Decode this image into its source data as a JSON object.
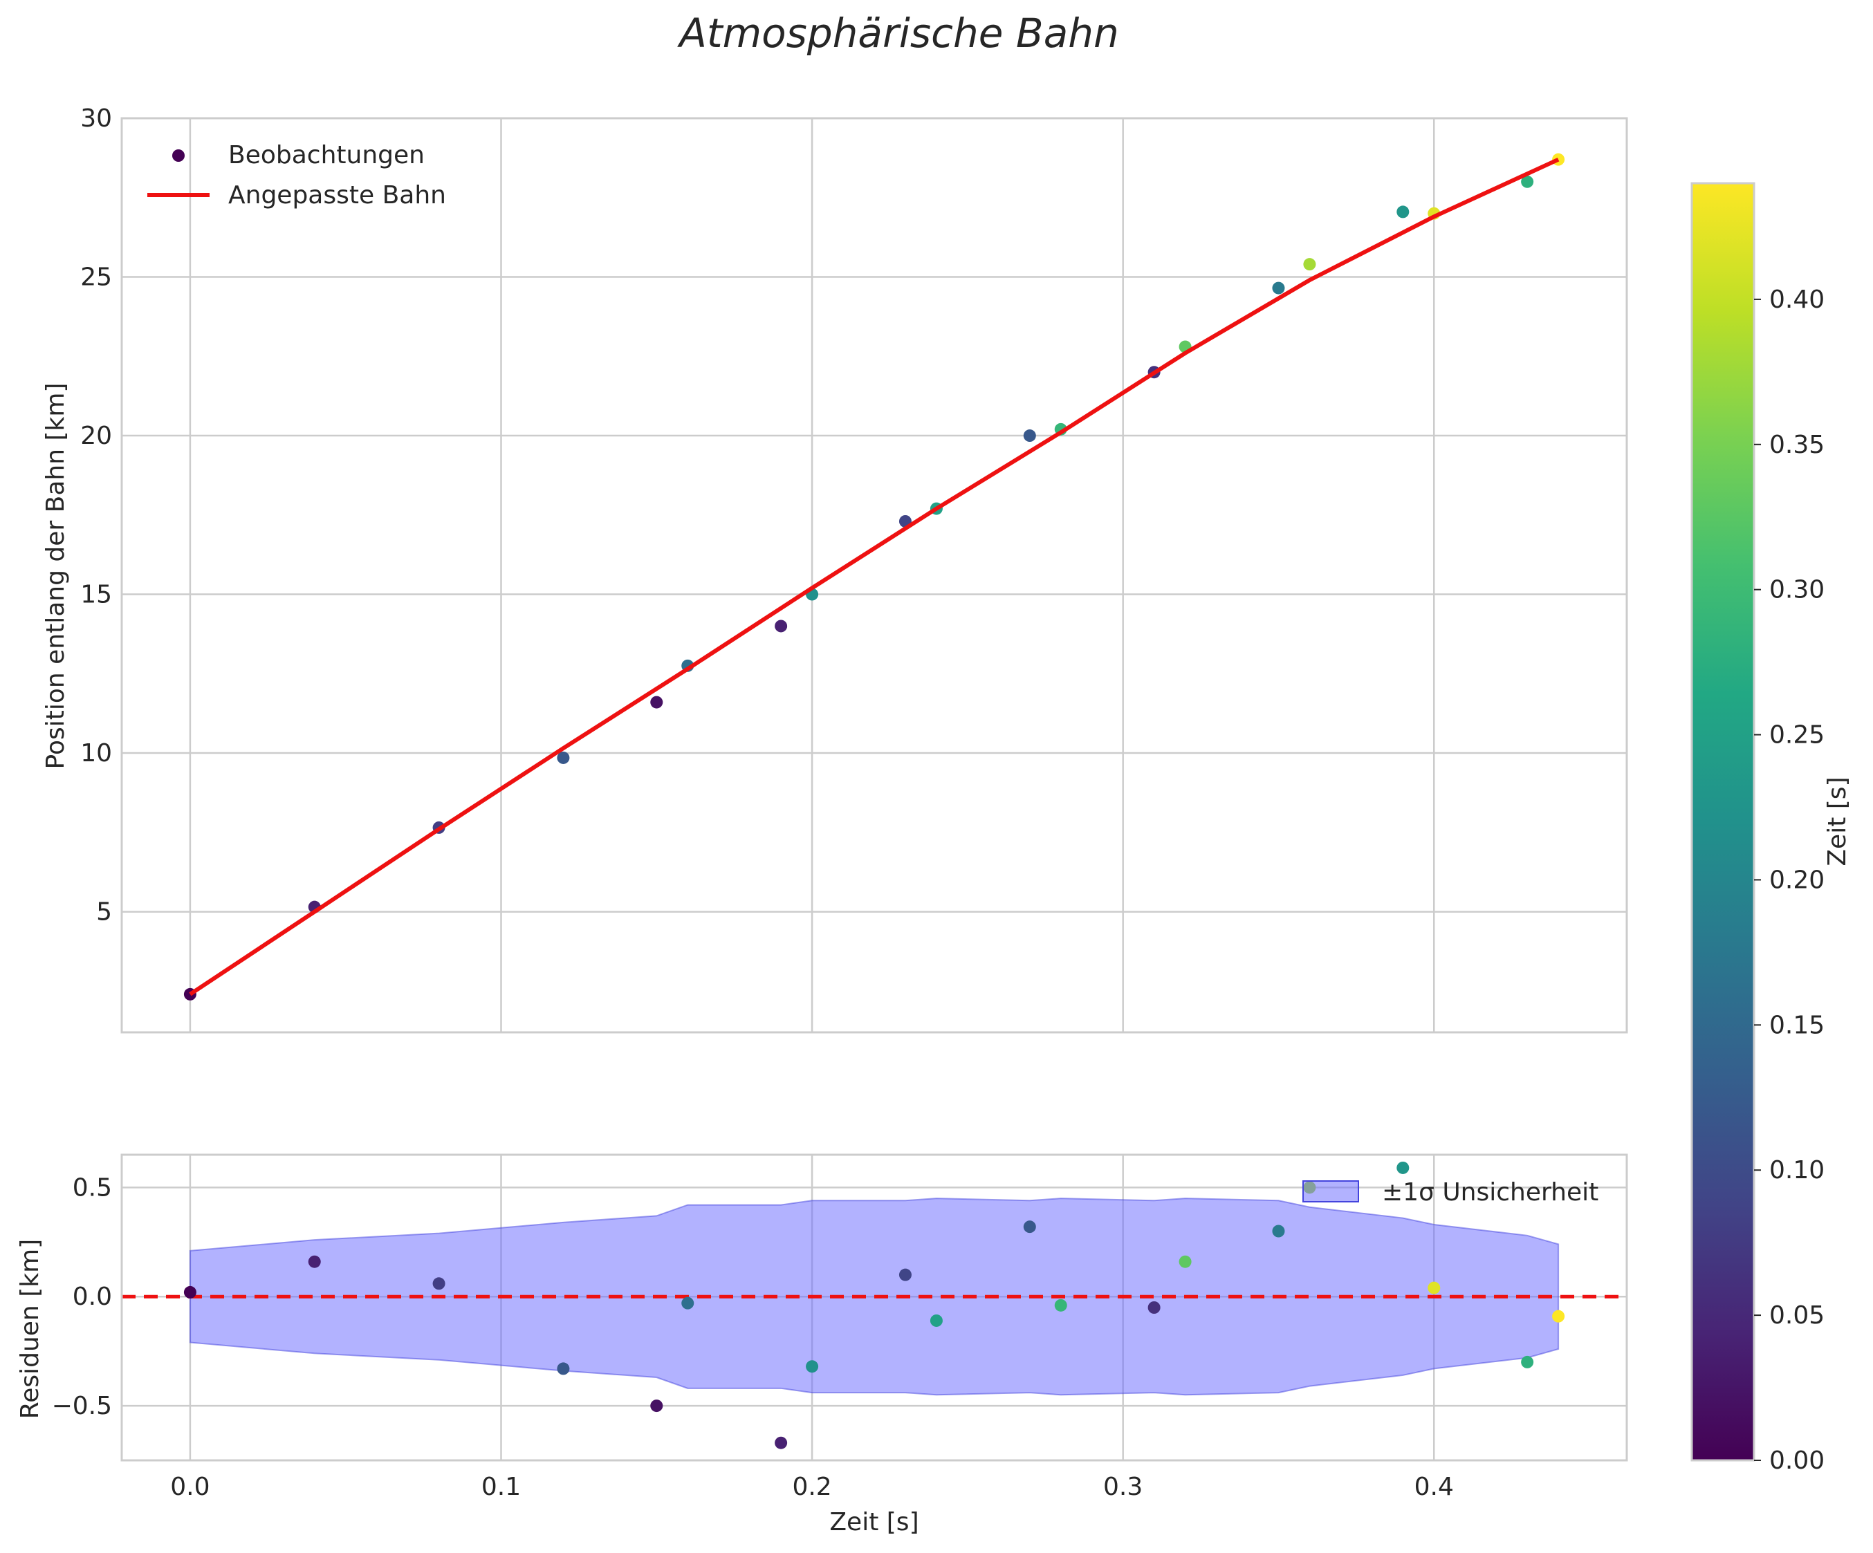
{
  "chart_data": [
    {
      "id": "main",
      "type": "scatter+line",
      "title": "Atmosphärische Bahn",
      "xlabel": "",
      "ylabel": "Position entlang der Bahn [km]",
      "xlim": [
        -0.022,
        0.462
      ],
      "ylim": [
        1.2,
        30
      ],
      "xticks": [
        0.0,
        0.1,
        0.2,
        0.3,
        0.4
      ],
      "yticks": [
        5,
        10,
        15,
        20,
        25,
        30
      ],
      "ytick_labels": [
        "5",
        "10",
        "15",
        "20",
        "25",
        "30"
      ],
      "grid": true,
      "legend_position": "top-left",
      "legend": [
        "Beobachtungen",
        "Angepasste Bahn"
      ],
      "observations": {
        "x": [
          0.0,
          0.04,
          0.08,
          0.12,
          0.15,
          0.16,
          0.19,
          0.2,
          0.23,
          0.24,
          0.27,
          0.28,
          0.31,
          0.32,
          0.35,
          0.36,
          0.39,
          0.4,
          0.43,
          0.44
        ],
        "y": [
          2.4,
          5.15,
          7.65,
          9.85,
          11.6,
          12.75,
          14.0,
          15.0,
          17.3,
          17.7,
          20.0,
          20.2,
          22.0,
          22.8,
          24.65,
          25.4,
          27.05,
          27.0,
          28.0,
          28.7
        ],
        "color_value": [
          0.0,
          0.04,
          0.08,
          0.12,
          0.02,
          0.16,
          0.04,
          0.22,
          0.09,
          0.25,
          0.12,
          0.29,
          0.06,
          0.33,
          0.18,
          0.38,
          0.23,
          0.42,
          0.28,
          0.44
        ]
      },
      "fit": {
        "x": [
          0.0,
          0.04,
          0.08,
          0.12,
          0.16,
          0.2,
          0.24,
          0.28,
          0.32,
          0.36,
          0.4,
          0.44
        ],
        "y": [
          2.4,
          5.0,
          7.6,
          10.15,
          12.65,
          15.2,
          17.7,
          20.1,
          22.6,
          24.9,
          26.9,
          28.7
        ]
      }
    },
    {
      "id": "residuals",
      "type": "scatter+area",
      "xlabel": "Zeit [s]",
      "ylabel": "Residuen [km]",
      "xlim": [
        -0.022,
        0.462
      ],
      "ylim": [
        -0.75,
        0.65
      ],
      "xticks": [
        0.0,
        0.1,
        0.2,
        0.3,
        0.4
      ],
      "xtick_labels": [
        "0.0",
        "0.1",
        "0.2",
        "0.3",
        "0.4"
      ],
      "yticks": [
        -0.5,
        0.0,
        0.5
      ],
      "ytick_labels": [
        "−0.5",
        "0.0",
        "0.5"
      ],
      "grid": true,
      "legend_position": "top-right",
      "legend": [
        "±1σ Unsicherheit"
      ],
      "zero_line": 0.0,
      "band": {
        "x": [
          0.0,
          0.04,
          0.08,
          0.12,
          0.15,
          0.16,
          0.19,
          0.2,
          0.23,
          0.24,
          0.27,
          0.28,
          0.31,
          0.32,
          0.35,
          0.36,
          0.39,
          0.4,
          0.43,
          0.44
        ],
        "upper": [
          0.21,
          0.26,
          0.29,
          0.34,
          0.37,
          0.42,
          0.42,
          0.44,
          0.44,
          0.45,
          0.44,
          0.45,
          0.44,
          0.45,
          0.44,
          0.41,
          0.36,
          0.33,
          0.28,
          0.24
        ]
      },
      "observations": {
        "x": [
          0.0,
          0.04,
          0.08,
          0.12,
          0.15,
          0.16,
          0.19,
          0.2,
          0.23,
          0.24,
          0.27,
          0.28,
          0.31,
          0.32,
          0.35,
          0.36,
          0.39,
          0.4,
          0.43,
          0.44
        ],
        "y": [
          0.02,
          0.16,
          0.06,
          -0.33,
          -0.5,
          -0.03,
          -0.67,
          -0.32,
          0.1,
          -0.11,
          0.32,
          -0.04,
          -0.05,
          0.16,
          0.3,
          0.5,
          0.59,
          0.04,
          -0.3,
          -0.09
        ]
      }
    },
    {
      "id": "colorbar",
      "type": "colorbar",
      "label": "Zeit [s]",
      "colormap": "viridis",
      "range": [
        0.0,
        0.44
      ],
      "ticks": [
        0.0,
        0.05,
        0.1,
        0.15,
        0.2,
        0.25,
        0.3,
        0.35,
        0.4
      ],
      "tick_labels": [
        "0.00",
        "0.05",
        "0.10",
        "0.15",
        "0.20",
        "0.25",
        "0.30",
        "0.35",
        "0.40"
      ]
    }
  ],
  "colors": {
    "fit_line": "#ee1111",
    "zero_line": "#ee1111",
    "band_fill": "#6666ff",
    "grid": "#cccccc",
    "frame": "#cccccc"
  }
}
